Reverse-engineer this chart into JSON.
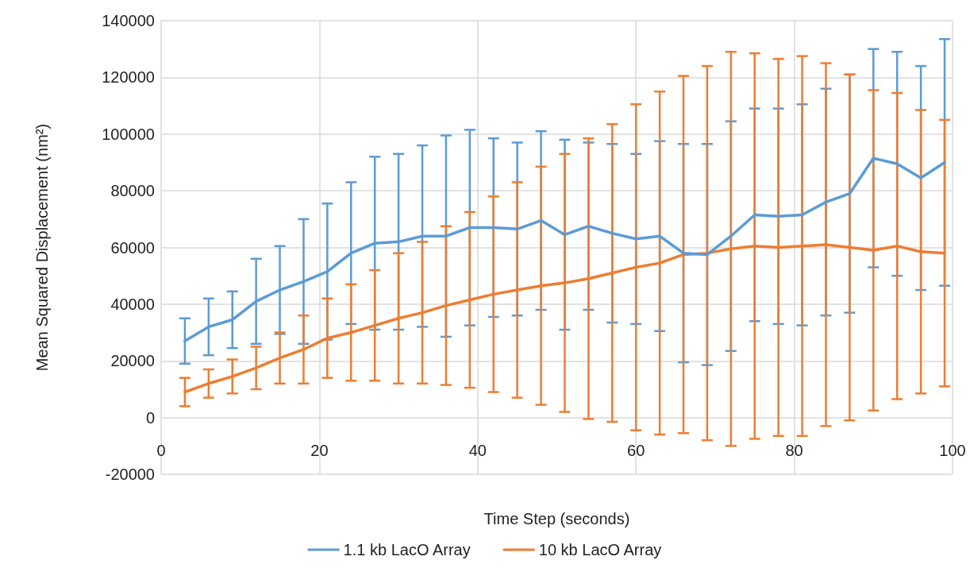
{
  "chart_data": {
    "type": "line",
    "xlabel": "Time Step (seconds)",
    "ylabel": "Mean Squared Displacement (nm²)",
    "x": [
      3,
      6,
      9,
      12,
      15,
      18,
      21,
      24,
      27,
      30,
      33,
      36,
      39,
      42,
      45,
      48,
      51,
      54,
      57,
      60,
      63,
      66,
      69,
      72,
      75,
      78,
      81,
      84,
      87,
      90,
      93,
      96,
      99
    ],
    "series": [
      {
        "name": "1.1 kb LacO Array",
        "color": "#5b9bd5",
        "values": [
          27000,
          32000,
          34500,
          41000,
          45000,
          48000,
          51500,
          58000,
          61500,
          62000,
          64000,
          64000,
          67000,
          67000,
          66500,
          69500,
          64500,
          67500,
          65000,
          63000,
          64000,
          58000,
          57500,
          64000,
          71500,
          71000,
          71500,
          76000,
          79000,
          91500,
          89500,
          84500,
          90000
        ],
        "errors": [
          8000,
          10000,
          10000,
          15000,
          15500,
          22000,
          24000,
          25000,
          30500,
          31000,
          32000,
          35500,
          34500,
          31500,
          30500,
          31500,
          33500,
          29500,
          31500,
          30000,
          33500,
          38500,
          39000,
          40500,
          37500,
          38000,
          39000,
          40000,
          42000,
          38500,
          39500,
          39500,
          43500
        ]
      },
      {
        "name": "10 kb LacO Array",
        "color": "#ed7d31",
        "values": [
          9000,
          12000,
          14500,
          17500,
          21000,
          24000,
          28000,
          30000,
          32500,
          35000,
          37000,
          39500,
          41500,
          43500,
          45000,
          46500,
          47500,
          49000,
          51000,
          53000,
          54500,
          57500,
          58000,
          59500,
          60500,
          60000,
          60500,
          61000,
          60000,
          59000,
          60500,
          58500,
          58000
        ],
        "errors": [
          5000,
          5000,
          6000,
          7500,
          9000,
          12000,
          14000,
          17000,
          19500,
          23000,
          25000,
          28000,
          31000,
          34500,
          38000,
          42000,
          45500,
          49500,
          52500,
          57500,
          60500,
          63000,
          66000,
          69500,
          68000,
          66500,
          67000,
          64000,
          61000,
          56500,
          54000,
          50000,
          47000
        ]
      }
    ],
    "xlim": [
      0,
      100
    ],
    "xticks": [
      0,
      20,
      40,
      60,
      80,
      100
    ],
    "ylim": [
      -20000,
      140000
    ],
    "yticks": [
      -20000,
      0,
      20000,
      40000,
      60000,
      80000,
      100000,
      120000,
      140000
    ],
    "grid": true,
    "legend": "bottom",
    "marker": "none",
    "line_style": "solid"
  }
}
